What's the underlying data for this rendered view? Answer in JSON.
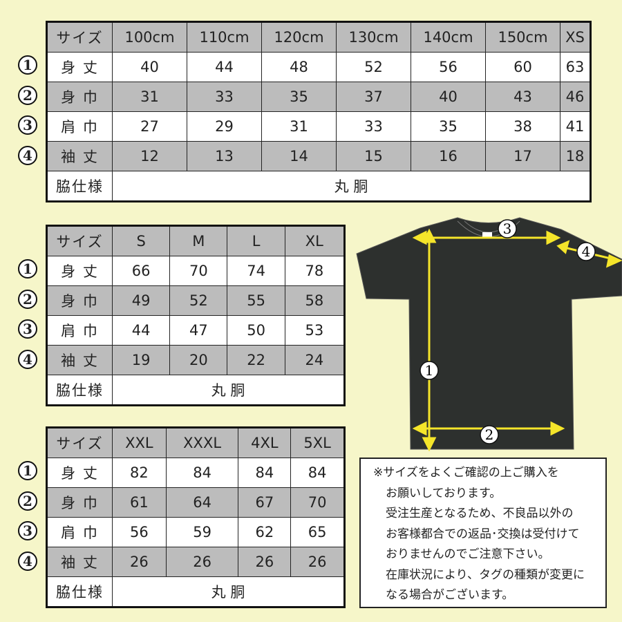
{
  "row_labels": [
    "身 丈",
    "身 巾",
    "肩 巾",
    "袖 丈"
  ],
  "row_markers": [
    "1",
    "2",
    "3",
    "4"
  ],
  "header_label": "サイズ",
  "side_label": "脇仕様",
  "side_value": "丸 胴",
  "tables": [
    {
      "sizes": [
        "100cm",
        "110cm",
        "120cm",
        "130cm",
        "140cm",
        "150cm",
        "XS"
      ],
      "rows": [
        [
          "40",
          "44",
          "48",
          "52",
          "56",
          "60",
          "63"
        ],
        [
          "31",
          "33",
          "35",
          "37",
          "40",
          "43",
          "46"
        ],
        [
          "27",
          "29",
          "31",
          "33",
          "35",
          "38",
          "41"
        ],
        [
          "12",
          "13",
          "14",
          "15",
          "16",
          "17",
          "18"
        ]
      ]
    },
    {
      "sizes": [
        "S",
        "M",
        "L",
        "XL"
      ],
      "rows": [
        [
          "66",
          "70",
          "74",
          "78"
        ],
        [
          "49",
          "52",
          "55",
          "58"
        ],
        [
          "44",
          "47",
          "50",
          "53"
        ],
        [
          "19",
          "20",
          "22",
          "24"
        ]
      ]
    },
    {
      "sizes": [
        "XXL",
        "XXXL",
        "4XL",
        "5XL"
      ],
      "rows": [
        [
          "82",
          "84",
          "84",
          "84"
        ],
        [
          "61",
          "64",
          "67",
          "70"
        ],
        [
          "56",
          "59",
          "62",
          "65"
        ],
        [
          "26",
          "26",
          "26",
          "26"
        ]
      ]
    }
  ],
  "diagram": {
    "markers": [
      "1",
      "2",
      "3",
      "4"
    ],
    "shirt_color": "#2d302e",
    "arrow_color": "#f5e52a"
  },
  "note": {
    "lines": [
      "※サイズをよくご確認の上ご購入を",
      "お願いしております。",
      "受注生産となるため、不良品以外の",
      "お客様都合での返品･交換は受付けて",
      "おりませんのでご注意下さい。",
      "在庫状況により、タグの種類が変更に",
      "なる場合がございます。"
    ]
  },
  "colors": {
    "background": "#f6f6c9",
    "header_gray": "#bcbcbc"
  }
}
